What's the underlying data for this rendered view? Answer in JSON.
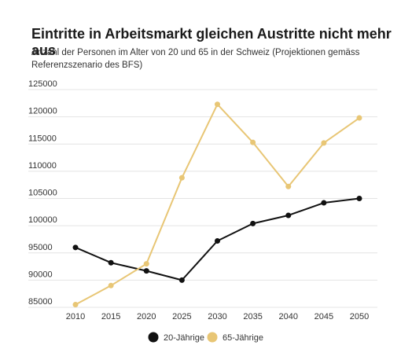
{
  "chart_data": {
    "type": "line",
    "title": "Eintritte in Arbeitsmarkt gleichen Austritte nicht mehr aus",
    "subtitle": "Anzahl der Personen im Alter von 20 und 65 in der Schweiz (Projektionen gemäss Referenzszenario des BFS)",
    "x": [
      "2010",
      "2015",
      "2020",
      "2025",
      "2030",
      "2035",
      "2040",
      "2045",
      "2050"
    ],
    "ylim": [
      85000,
      125000
    ],
    "yticks": [
      "125000",
      "120000",
      "115000",
      "110000",
      "105000",
      "100000",
      "95000",
      "90000",
      "85000"
    ],
    "grid": true,
    "legend_position": "bottom",
    "series": [
      {
        "name": "20-Jährige",
        "color": "#111111",
        "values": [
          96000,
          93200,
          91700,
          90000,
          97200,
          100400,
          101900,
          104200,
          105000
        ]
      },
      {
        "name": "65-Jährige",
        "color": "#e8c675",
        "values": [
          85500,
          89000,
          93000,
          108800,
          122300,
          115300,
          107200,
          115200,
          119800
        ]
      }
    ]
  }
}
